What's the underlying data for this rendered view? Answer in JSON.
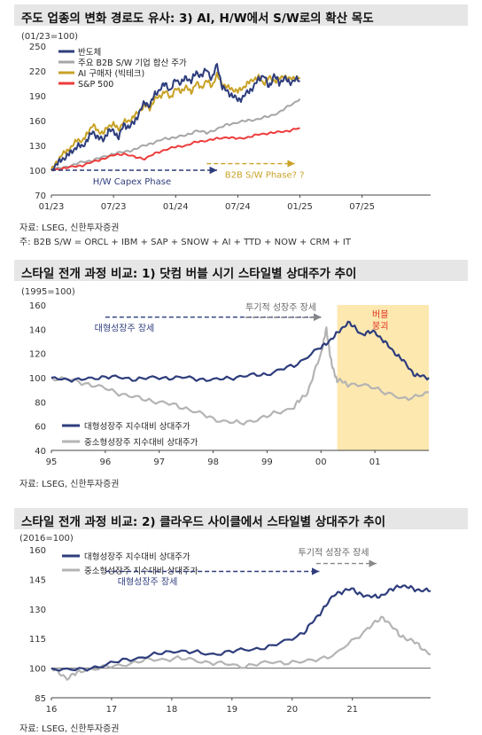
{
  "chart_data": [
    {
      "type": "line",
      "title": "주도 업종의 변화 경로도 유사: 3) AI, H/W에서 S/W로의 확산 목도",
      "base_label": "(01/23=100)",
      "x_ticks": [
        "01/23",
        "07/23",
        "01/24",
        "07/24",
        "01/25",
        "07/25"
      ],
      "y_ticks": [
        70,
        100,
        130,
        160,
        190,
        220,
        250
      ],
      "ylim": [
        70,
        250
      ],
      "series": [
        {
          "name": "반도체",
          "color": "#2e3d7c",
          "x": [
            0,
            2,
            4,
            6,
            8,
            10,
            12,
            14,
            16,
            18,
            20,
            22,
            24,
            26,
            28,
            30,
            32,
            34,
            36,
            38,
            40,
            42,
            44,
            46,
            48,
            50,
            52,
            54,
            56,
            58,
            60,
            62,
            64,
            66,
            68,
            70,
            72,
            74,
            76,
            78,
            80,
            82,
            84,
            86,
            88,
            90,
            92,
            94,
            96
          ],
          "values": [
            100,
            108,
            112,
            118,
            122,
            130,
            128,
            138,
            146,
            140,
            136,
            148,
            147,
            140,
            155,
            152,
            158,
            170,
            182,
            178,
            192,
            198,
            205,
            196,
            210,
            205,
            212,
            208,
            218,
            214,
            222,
            210,
            228,
            200,
            195,
            190,
            185,
            188,
            195,
            200,
            210,
            215,
            200,
            215,
            205,
            212,
            205,
            210,
            208
          ]
        },
        {
          "name": "주요 B2B S/W 기업 합산 주가",
          "color": "#a6a6a6",
          "x": [
            0,
            4,
            8,
            12,
            16,
            20,
            24,
            28,
            32,
            36,
            40,
            44,
            48,
            52,
            56,
            60,
            64,
            68,
            72,
            76,
            80,
            84,
            88,
            92,
            96
          ],
          "values": [
            100,
            103,
            106,
            110,
            112,
            116,
            120,
            122,
            125,
            130,
            134,
            138,
            140,
            142,
            148,
            145,
            150,
            155,
            158,
            160,
            162,
            165,
            170,
            178,
            186
          ]
        },
        {
          "name": "AI 구매자 (빅테크)",
          "color": "#c9a227",
          "x": [
            0,
            2,
            4,
            6,
            8,
            10,
            12,
            14,
            16,
            18,
            20,
            22,
            24,
            26,
            28,
            30,
            32,
            34,
            36,
            38,
            40,
            42,
            44,
            46,
            48,
            50,
            52,
            54,
            56,
            58,
            60,
            62,
            64,
            66,
            68,
            70,
            72,
            74,
            76,
            78,
            80,
            82,
            84,
            86,
            88,
            90,
            92,
            94,
            96
          ],
          "values": [
            100,
            110,
            118,
            124,
            128,
            138,
            134,
            146,
            154,
            148,
            144,
            154,
            155,
            150,
            158,
            160,
            165,
            172,
            178,
            175,
            186,
            190,
            195,
            188,
            198,
            196,
            200,
            195,
            205,
            200,
            208,
            202,
            215,
            205,
            200,
            198,
            195,
            200,
            205,
            210,
            212,
            205,
            212,
            208,
            210,
            214,
            210,
            212,
            212
          ]
        },
        {
          "name": "S&P 500",
          "color": "#ee3c3c",
          "x": [
            0,
            4,
            8,
            12,
            16,
            20,
            24,
            28,
            32,
            36,
            40,
            44,
            48,
            52,
            56,
            60,
            64,
            68,
            72,
            76,
            80,
            84,
            88,
            92,
            96
          ],
          "values": [
            100,
            102,
            104,
            106,
            110,
            114,
            118,
            120,
            116,
            114,
            120,
            125,
            128,
            130,
            134,
            136,
            138,
            140,
            138,
            140,
            143,
            145,
            146,
            148,
            151
          ]
        }
      ],
      "annotations": {
        "hw": "H/W Capex Phase",
        "bw": "B2B S/W Phase? ?"
      },
      "source": "자료: LSEG, 신한투자증권",
      "note": "주: B2B S/W = ORCL + IBM + SAP + SNOW + AI + TTD + NOW + CRM + IT"
    },
    {
      "type": "line",
      "title": "스타일 전개 과정 비교: 1) 닷컴 버블 시기 스타일별 상대주가 추이",
      "base_label": "(1995=100)",
      "x_ticks": [
        "95",
        "96",
        "97",
        "98",
        "99",
        "00",
        "01"
      ],
      "y_ticks": [
        40,
        60,
        80,
        100,
        120,
        140,
        160
      ],
      "ylim": [
        40,
        160
      ],
      "series": [
        {
          "name": "대형성장주 지수대비 상대주가",
          "color": "#2e3d7c",
          "x": [
            0,
            0.5,
            1,
            1.5,
            2,
            2.5,
            3,
            3.5,
            4,
            4.5,
            5,
            5.25,
            5.5,
            5.75,
            6,
            6.25,
            6.5,
            6.75,
            7
          ],
          "values": [
            100,
            98,
            101,
            99,
            100,
            100,
            98,
            101,
            103,
            110,
            125,
            134,
            146,
            136,
            138,
            126,
            115,
            102,
            100
          ]
        },
        {
          "name": "중소형성장주 지수대비 상대주가",
          "color": "#b4b4b4",
          "x": [
            0,
            0.5,
            1,
            1.5,
            2,
            2.5,
            3,
            3.5,
            4,
            4.5,
            4.75,
            5,
            5.1,
            5.2,
            5.3,
            5.5,
            6,
            6.5,
            7
          ],
          "values": [
            100,
            97,
            91,
            84,
            80,
            75,
            66,
            62,
            68,
            76,
            88,
            120,
            140,
            110,
            98,
            95,
            92,
            82,
            88
          ]
        }
      ],
      "annotations": {
        "bubble_line1": "버블",
        "bubble_line2": "붕괴",
        "growth": "대형성장주 장세",
        "spec": "투기적 성장주 장세"
      },
      "source": "자료: LSEG, 신한투자증권"
    },
    {
      "type": "line",
      "title": "스타일 전개 과정 비교: 2) 클라우드 사이클에서 스타일별 상대주가 추이",
      "base_label": "(2016=100)",
      "x_ticks": [
        "16",
        "17",
        "18",
        "19",
        "20",
        "21"
      ],
      "y_ticks": [
        85,
        100,
        115,
        130,
        145,
        160
      ],
      "ylim": [
        85,
        160
      ],
      "series": [
        {
          "name": "대형성장주 지수대비 상대주가",
          "color": "#2e3d7c",
          "x": [
            0,
            0.5,
            1,
            1.5,
            2,
            2.5,
            3,
            3.5,
            4,
            4.25,
            4.5,
            4.75,
            5,
            5.25,
            5.5,
            5.75,
            6
          ],
          "values": [
            100,
            99,
            103,
            106,
            109,
            107,
            109,
            111,
            118,
            128,
            138,
            140,
            136,
            137,
            142,
            140,
            139
          ]
        },
        {
          "name": "중소형성장주 지수대비 상대주가",
          "color": "#b4b4b4",
          "x": [
            0,
            0.25,
            0.5,
            1,
            1.5,
            2,
            2.5,
            3,
            3.5,
            4,
            4.5,
            5,
            5.25,
            5.5,
            5.75,
            6
          ],
          "values": [
            100,
            95,
            99,
            101,
            104,
            105,
            103,
            101,
            103,
            103,
            107,
            120,
            126,
            117,
            113,
            107
          ]
        }
      ],
      "annotations": {
        "growth": "대형성장주 장세",
        "spec": "투기적 성장주 장세"
      },
      "source": "자료: LSEG, 신한투자증권"
    }
  ]
}
